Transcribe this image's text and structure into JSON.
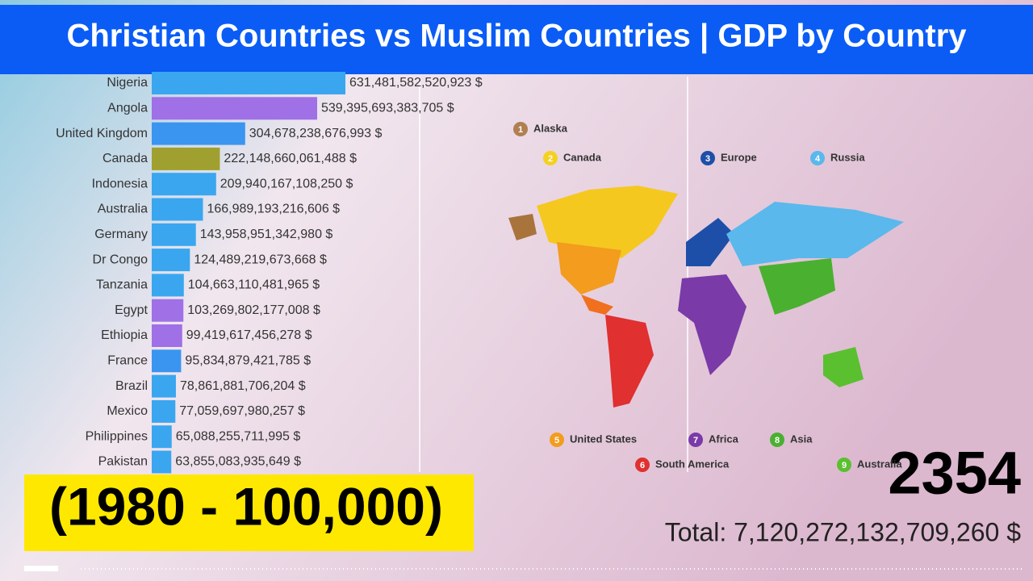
{
  "chart_data": {
    "type": "bar",
    "orientation": "horizontal",
    "title": "Christian Countries vs Muslim Countries | GDP by Country",
    "subtitle": "(1980 - 100,000)",
    "year": 2354,
    "total_label": "Total: 7,120,272,132,709,260 $",
    "categories": [
      "Nigeria",
      "Angola",
      "United Kingdom",
      "Canada",
      "Indonesia",
      "Australia",
      "Germany",
      "Dr Congo",
      "Tanzania",
      "Egypt",
      "Ethiopia",
      "France",
      "Brazil",
      "Mexico",
      "Philippines",
      "Pakistan"
    ],
    "values": [
      631481582520923,
      539395693383705,
      304678238676993,
      222148660061488,
      209940167108250,
      166989193216606,
      143958951342980,
      124489219673668,
      104663110481965,
      103269802177008,
      99419617456278,
      95834879421785,
      78861881706204,
      77059697980257,
      65088255711995,
      63855083935649
    ],
    "value_labels": [
      "631,481,582,520,923 $",
      "539,395,693,383,705 $",
      "304,678,238,676,993 $",
      "222,148,660,061,488 $",
      "209,940,167,108,250 $",
      "166,989,193,216,606 $",
      "143,958,951,342,980 $",
      "124,489,219,673,668 $",
      "104,663,110,481,965 $",
      "103,269,802,177,008 $",
      "99,419,617,456,278 $",
      "95,834,879,421,785 $",
      "78,861,881,706,204 $",
      "77,059,697,980,257 $",
      "65,088,255,711,995 $",
      "63,855,083,935,649 $"
    ],
    "colors": [
      "#3aa6f0",
      "#a070e6",
      "#3a95f0",
      "#a0a030",
      "#3aa6f0",
      "#3aa6f0",
      "#3aa6f0",
      "#3aa6f0",
      "#3aa6f0",
      "#a070e6",
      "#a070e6",
      "#3a95f0",
      "#3aa6f0",
      "#3aa6f0",
      "#3aa6f0",
      "#3aa6f0"
    ]
  },
  "map": {
    "labels": [
      {
        "number": "1",
        "name": "Alaska",
        "color": "#b08050"
      },
      {
        "number": "2",
        "name": "Canada",
        "color": "#f5d020"
      },
      {
        "number": "3",
        "name": "Europe",
        "color": "#1e4fa8"
      },
      {
        "number": "4",
        "name": "Russia",
        "color": "#5ab8ec"
      },
      {
        "number": "5",
        "name": "United States",
        "color": "#f39c1e"
      },
      {
        "number": "6",
        "name": "South America",
        "color": "#e03030"
      },
      {
        "number": "7",
        "name": "Africa",
        "color": "#7a3aa8"
      },
      {
        "number": "8",
        "name": "Asia",
        "color": "#4ab030"
      },
      {
        "number": "9",
        "name": "Australia",
        "color": "#5ac030"
      }
    ]
  }
}
